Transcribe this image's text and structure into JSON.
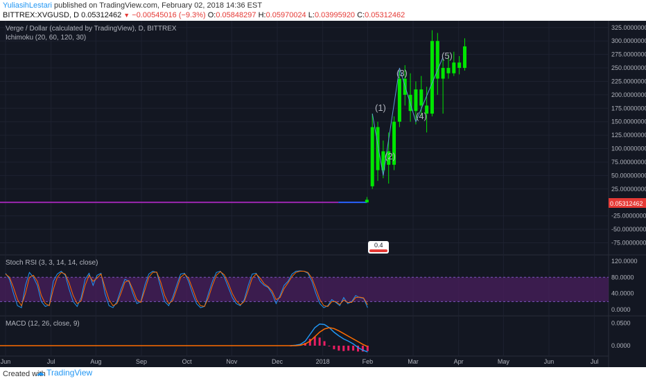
{
  "header": {
    "user": "YuliasihLestari",
    "published": "published on TradingView.com, February 02, 2018 14:36 EST",
    "symbol": "BITTREX:XVGUSD, D",
    "last": "0.05312462",
    "change": "−0.00545016 (−9.3%)",
    "o_label": "O:",
    "o_val": "0.05848297",
    "h_label": "H:",
    "h_val": "0.05970024",
    "l_label": "L:",
    "l_val": "0.03995920",
    "c_label": "C:",
    "c_val": "0.05312462"
  },
  "main_pane": {
    "title": "Verge / Dollar (calculated by TradingView), D, BITTREX",
    "indicator": "Ichimoku (20, 60, 120, 30)",
    "price_badge": "0.05312462",
    "wave_labels": [
      "(1)",
      "(2)",
      "(3)",
      "(4)",
      "(5)"
    ],
    "marker_text": "0.4"
  },
  "stoch_pane": {
    "title": "Stoch RSI (3, 3, 14, 14, close)"
  },
  "macd_pane": {
    "title": "MACD (12, 26, close, 9)"
  },
  "footer": {
    "created": "Created with",
    "brand": "TradingView"
  },
  "colors": {
    "background": "#131722",
    "candle_up": "#00e600",
    "purple_line": "#9c27b0",
    "blue_line": "#2962ff",
    "stoch_k": "#2196f3",
    "stoch_d": "#ff6d00",
    "band_fill": "#4a1f5e",
    "badge": "#e53935",
    "macd_hist": "#e91e63"
  },
  "chart_data": [
    {
      "type": "candlestick",
      "title": "Verge / Dollar (calculated by TradingView), D, BITTREX",
      "ylim": [
        -95,
        335
      ],
      "y_ticks": [
        325,
        300,
        275,
        250,
        225,
        200,
        175,
        150,
        125,
        100,
        75,
        50,
        25,
        -25,
        -50,
        -75
      ],
      "y_tick_labels": [
        "325.00000000",
        "300.00000000",
        "275.00000000",
        "250.00000000",
        "225.00000000",
        "200.00000000",
        "175.00000000",
        "150.00000000",
        "125.00000000",
        "100.00000000",
        "75.00000000",
        "50.00000000",
        "25.00000000",
        "-25.00000000",
        "-50.00000000",
        "-75.00000000"
      ],
      "x_ticks": [
        "Jun",
        "Jul",
        "Aug",
        "Sep",
        "Oct",
        "Nov",
        "Dec",
        "2018",
        "Feb",
        "Mar",
        "Apr",
        "May",
        "Jun",
        "Jul"
      ],
      "x_tick_pos": [
        0.0,
        0.067,
        0.133,
        0.2,
        0.267,
        0.333,
        0.4,
        0.467,
        0.533,
        0.6,
        0.667,
        0.733,
        0.8,
        0.867
      ],
      "flat_line_value": 0.05312462,
      "candles": [
        {
          "t": 0.532,
          "o": 0,
          "h": 10,
          "l": 0,
          "c": 5
        },
        {
          "t": 0.54,
          "o": 30,
          "h": 165,
          "l": 25,
          "c": 140
        },
        {
          "t": 0.548,
          "o": 140,
          "h": 150,
          "l": 40,
          "c": 60
        },
        {
          "t": 0.556,
          "o": 60,
          "h": 115,
          "l": 45,
          "c": 95
        },
        {
          "t": 0.564,
          "o": 95,
          "h": 130,
          "l": 35,
          "c": 70
        },
        {
          "t": 0.572,
          "o": 70,
          "h": 160,
          "l": 60,
          "c": 150
        },
        {
          "t": 0.58,
          "o": 150,
          "h": 245,
          "l": 140,
          "c": 230
        },
        {
          "t": 0.588,
          "o": 230,
          "h": 255,
          "l": 180,
          "c": 200
        },
        {
          "t": 0.596,
          "o": 200,
          "h": 240,
          "l": 150,
          "c": 170
        },
        {
          "t": 0.604,
          "o": 170,
          "h": 225,
          "l": 145,
          "c": 210
        },
        {
          "t": 0.612,
          "o": 210,
          "h": 235,
          "l": 160,
          "c": 180
        },
        {
          "t": 0.62,
          "o": 180,
          "h": 215,
          "l": 130,
          "c": 165
        },
        {
          "t": 0.628,
          "o": 165,
          "h": 320,
          "l": 160,
          "c": 300
        },
        {
          "t": 0.636,
          "o": 300,
          "h": 315,
          "l": 200,
          "c": 230
        },
        {
          "t": 0.644,
          "o": 230,
          "h": 265,
          "l": 165,
          "c": 250
        },
        {
          "t": 0.652,
          "o": 250,
          "h": 275,
          "l": 230,
          "c": 240
        },
        {
          "t": 0.66,
          "o": 240,
          "h": 280,
          "l": 235,
          "c": 260
        },
        {
          "t": 0.668,
          "o": 260,
          "h": 272,
          "l": 238,
          "c": 250
        },
        {
          "t": 0.676,
          "o": 250,
          "h": 305,
          "l": 245,
          "c": 290
        }
      ]
    },
    {
      "type": "line",
      "title": "Stoch RSI (3, 3, 14, 14, close)",
      "ylim": [
        -5,
        125
      ],
      "y_ticks": [
        120,
        80,
        40,
        0
      ],
      "y_tick_labels": [
        "120.0000",
        "80.0000",
        "40.0000",
        "0.0000"
      ],
      "band": [
        20,
        80
      ],
      "series": [
        {
          "values": [
            90,
            75,
            40,
            10,
            5,
            60,
            92,
            80,
            60,
            20,
            8,
            12,
            70,
            88,
            95,
            85,
            50,
            20,
            8,
            30,
            75,
            90,
            60,
            85,
            90,
            40,
            10,
            5,
            20,
            50,
            75,
            70,
            40,
            15,
            20,
            60,
            88,
            95,
            92,
            55,
            20,
            10,
            30,
            60,
            88,
            90,
            70,
            40,
            15,
            5,
            8,
            40,
            70,
            92,
            95,
            80,
            55,
            30,
            15,
            10,
            25,
            60,
            88,
            90,
            70,
            60,
            55,
            40,
            15,
            35,
            60,
            70,
            88,
            95,
            96,
            95,
            90,
            70,
            40,
            15,
            5,
            10,
            25,
            18,
            10,
            30,
            15,
            20,
            35,
            30,
            28,
            5
          ]
        },
        {
          "values": [
            88,
            80,
            55,
            25,
            10,
            40,
            80,
            85,
            70,
            35,
            15,
            10,
            50,
            80,
            92,
            88,
            65,
            35,
            15,
            22,
            60,
            85,
            70,
            78,
            88,
            55,
            25,
            10,
            15,
            40,
            68,
            72,
            50,
            25,
            18,
            48,
            80,
            92,
            93,
            68,
            35,
            15,
            22,
            50,
            80,
            88,
            78,
            52,
            25,
            10,
            8,
            30,
            60,
            85,
            94,
            86,
            65,
            40,
            22,
            12,
            20,
            48,
            78,
            88,
            78,
            64,
            57,
            46,
            25,
            30,
            52,
            66,
            82,
            92,
            95,
            95,
            92,
            78,
            52,
            25,
            10,
            8,
            20,
            20,
            13,
            24,
            18,
            18,
            30,
            31,
            29,
            12
          ]
        }
      ]
    },
    {
      "type": "line",
      "title": "MACD (12, 26, close, 9)",
      "ylim": [
        -0.02,
        0.06
      ],
      "y_ticks": [
        0.05,
        0.0
      ],
      "y_tick_labels": [
        "0.0500",
        "0.0000"
      ],
      "series": [
        {
          "values": [
            0,
            0.001,
            0.003,
            0.01,
            0.025,
            0.04,
            0.048,
            0.047,
            0.04,
            0.03,
            0.022,
            0.015,
            0.01,
            0.004,
            -0.004,
            -0.01,
            -0.014
          ]
        },
        {
          "values": [
            0,
            0,
            0.001,
            0.004,
            0.01,
            0.02,
            0.03,
            0.037,
            0.04,
            0.038,
            0.033,
            0.027,
            0.021,
            0.015,
            0.009,
            0.003,
            -0.002
          ]
        }
      ]
    }
  ]
}
